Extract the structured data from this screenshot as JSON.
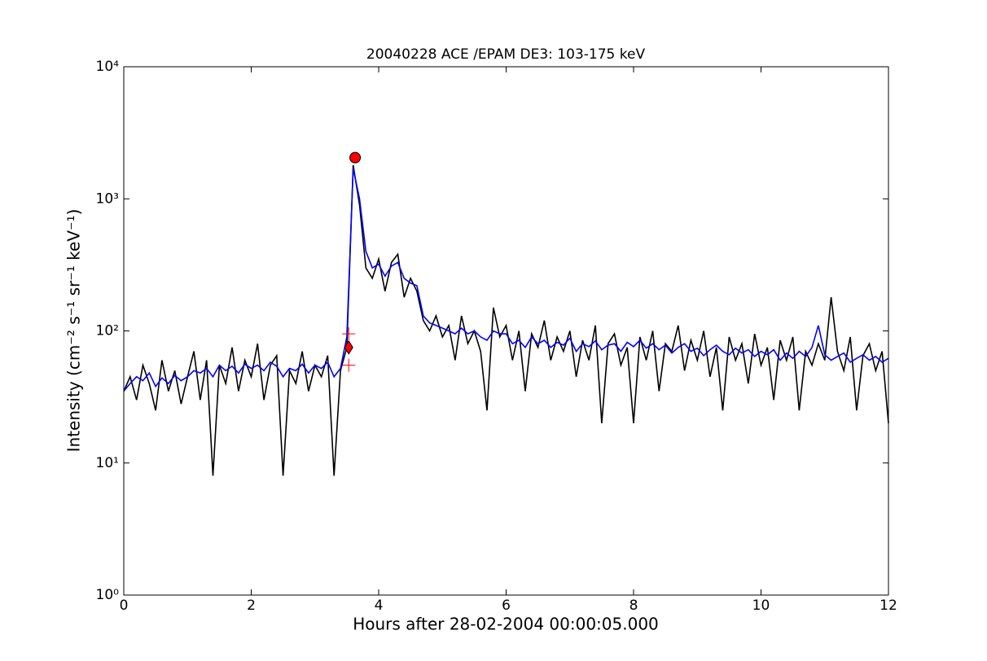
{
  "chart_data": {
    "type": "line",
    "title": "20040228 ACE /EPAM DE3: 103-175 keV",
    "xlabel": "Hours after 28-02-2004 00:00:05.000",
    "ylabel": "Intensity (cm⁻² s⁻¹ sr⁻¹ keV⁻¹)",
    "log_y": true,
    "xlim": [
      0,
      12
    ],
    "xticks": [
      0,
      2,
      4,
      6,
      8,
      10,
      12
    ],
    "ylim": [
      1,
      10000
    ],
    "yticks": [
      {
        "value": 1,
        "label": "10⁰"
      },
      {
        "value": 10,
        "label": "10¹"
      },
      {
        "value": 100,
        "label": "10²"
      },
      {
        "value": 1000,
        "label": "10³"
      },
      {
        "value": 10000,
        "label": "10⁴"
      }
    ],
    "x": [
      0,
      0.1,
      0.2,
      0.3,
      0.4,
      0.5,
      0.6,
      0.7,
      0.8,
      0.9,
      1,
      1.1,
      1.2,
      1.3,
      1.4,
      1.5,
      1.6,
      1.7,
      1.8,
      1.9,
      2,
      2.1,
      2.2,
      2.3,
      2.4,
      2.5,
      2.6,
      2.7,
      2.8,
      2.9,
      3,
      3.1,
      3.2,
      3.3,
      3.4,
      3.5,
      3.6,
      3.7,
      3.8,
      3.9,
      4,
      4.1,
      4.2,
      4.3,
      4.4,
      4.5,
      4.6,
      4.7,
      4.8,
      4.9,
      5,
      5.1,
      5.2,
      5.3,
      5.4,
      5.5,
      5.6,
      5.7,
      5.8,
      5.9,
      6,
      6.1,
      6.2,
      6.3,
      6.4,
      6.5,
      6.6,
      6.7,
      6.8,
      6.9,
      7,
      7.1,
      7.2,
      7.3,
      7.4,
      7.5,
      7.6,
      7.7,
      7.8,
      7.9,
      8,
      8.1,
      8.2,
      8.3,
      8.4,
      8.5,
      8.6,
      8.7,
      8.8,
      8.9,
      9,
      9.1,
      9.2,
      9.3,
      9.4,
      9.5,
      9.6,
      9.7,
      9.8,
      9.9,
      10,
      10.1,
      10.2,
      10.3,
      10.4,
      10.5,
      10.6,
      10.7,
      10.8,
      10.9,
      11,
      11.1,
      11.2,
      11.3,
      11.4,
      11.5,
      11.6,
      11.7,
      11.8,
      11.9,
      12
    ],
    "series": [
      {
        "color": "#000000",
        "values": [
          35,
          45,
          30,
          55,
          40,
          25,
          60,
          35,
          50,
          28,
          45,
          70,
          30,
          60,
          8,
          55,
          40,
          75,
          35,
          60,
          45,
          80,
          30,
          55,
          65,
          8,
          50,
          40,
          70,
          35,
          55,
          45,
          65,
          8,
          50,
          75,
          1800,
          900,
          300,
          250,
          350,
          200,
          330,
          380,
          180,
          250,
          200,
          120,
          100,
          130,
          90,
          110,
          60,
          130,
          80,
          100,
          70,
          25,
          150,
          90,
          110,
          60,
          100,
          35,
          95,
          75,
          120,
          60,
          90,
          70,
          100,
          45,
          85,
          60,
          110,
          20,
          80,
          95,
          55,
          75,
          20,
          90,
          60,
          100,
          35,
          80,
          70,
          110,
          50,
          85,
          60,
          100,
          45,
          75,
          25,
          90,
          60,
          80,
          40,
          95,
          55,
          75,
          30,
          85,
          60,
          90,
          25,
          70,
          55,
          80,
          60,
          180,
          70,
          50,
          90,
          25,
          65,
          80,
          50,
          70,
          20
        ]
      },
      {
        "color": "#0000ff",
        "values": [
          35,
          40,
          45,
          42,
          48,
          38,
          44,
          40,
          46,
          42,
          45,
          50,
          48,
          52,
          45,
          55,
          50,
          54,
          48,
          56,
          52,
          55,
          50,
          58,
          54,
          45,
          52,
          50,
          56,
          48,
          55,
          52,
          58,
          45,
          52,
          90,
          1700,
          1000,
          400,
          300,
          320,
          260,
          310,
          330,
          250,
          230,
          220,
          130,
          115,
          110,
          105,
          100,
          95,
          105,
          95,
          100,
          90,
          85,
          100,
          95,
          95,
          80,
          85,
          75,
          90,
          80,
          85,
          75,
          82,
          78,
          88,
          70,
          80,
          76,
          84,
          72,
          78,
          80,
          70,
          82,
          76,
          85,
          74,
          80,
          72,
          78,
          68,
          75,
          80,
          70,
          74,
          65,
          72,
          78,
          70,
          66,
          74,
          68,
          72,
          64,
          70,
          66,
          72,
          60,
          68,
          62,
          70,
          64,
          75,
          110,
          66,
          60,
          64,
          68,
          58,
          62,
          66,
          60,
          64,
          58,
          62
        ]
      }
    ],
    "markers": [
      {
        "x": 3.63,
        "y": 2050,
        "shape": "circle",
        "color": "#ff0000"
      },
      {
        "x": 3.53,
        "y": 75,
        "shape": "diamond",
        "color": "#ff0000"
      },
      {
        "x": 3.53,
        "y": 95,
        "shape": "plus",
        "color": "#ff0000"
      },
      {
        "x": 3.53,
        "y": 55,
        "shape": "plus",
        "color": "#ff0000"
      }
    ]
  }
}
